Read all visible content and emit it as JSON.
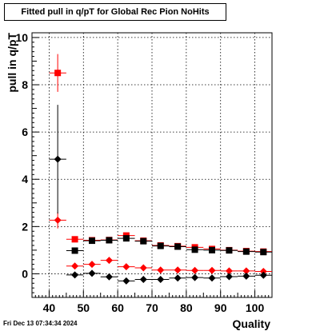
{
  "chart_data": {
    "type": "scatter",
    "title": "Fitted pull in q/pT for Global Rec Pion NoHits",
    "xlabel": "Quality",
    "ylabel": "pull in q/pT",
    "xlim": [
      35,
      105
    ],
    "ylim": [
      -1,
      10.2
    ],
    "x_ticks": [
      40,
      50,
      60,
      70,
      80,
      90,
      100
    ],
    "y_ticks": [
      0,
      2,
      4,
      6,
      8,
      10
    ],
    "grid": true,
    "x_bin_half_width": 2.5,
    "series": [
      {
        "marker": "square",
        "color": "#ff0000",
        "points": [
          {
            "x": 42.5,
            "y": 8.5,
            "err": 0.8
          },
          {
            "x": 47.5,
            "y": 1.46,
            "err": 0.05
          },
          {
            "x": 52.5,
            "y": 1.42,
            "err": 0.04
          },
          {
            "x": 57.5,
            "y": 1.43,
            "err": 0.04
          },
          {
            "x": 62.5,
            "y": 1.62,
            "err": 0.08
          },
          {
            "x": 67.5,
            "y": 1.4,
            "err": 0.03
          },
          {
            "x": 72.5,
            "y": 1.2,
            "err": 0.03
          },
          {
            "x": 77.5,
            "y": 1.17,
            "err": 0.03
          },
          {
            "x": 82.5,
            "y": 1.12,
            "err": 0.03
          },
          {
            "x": 87.5,
            "y": 1.05,
            "err": 0.03
          },
          {
            "x": 92.5,
            "y": 1.0,
            "err": 0.03
          },
          {
            "x": 97.5,
            "y": 0.96,
            "err": 0.03
          },
          {
            "x": 102.5,
            "y": 0.94,
            "err": 0.03
          }
        ]
      },
      {
        "marker": "square",
        "color": "#000000",
        "points": [
          {
            "x": 47.5,
            "y": 0.98,
            "err": 0.03
          },
          {
            "x": 52.5,
            "y": 1.4,
            "err": 0.03
          },
          {
            "x": 57.5,
            "y": 1.42,
            "err": 0.03
          },
          {
            "x": 62.5,
            "y": 1.5,
            "err": 0.04
          },
          {
            "x": 67.5,
            "y": 1.38,
            "err": 0.03
          },
          {
            "x": 72.5,
            "y": 1.18,
            "err": 0.03
          },
          {
            "x": 77.5,
            "y": 1.15,
            "err": 0.03
          },
          {
            "x": 82.5,
            "y": 1.02,
            "err": 0.03
          },
          {
            "x": 87.5,
            "y": 1.0,
            "err": 0.03
          },
          {
            "x": 92.5,
            "y": 0.99,
            "err": 0.03
          },
          {
            "x": 97.5,
            "y": 0.94,
            "err": 0.03
          },
          {
            "x": 102.5,
            "y": 0.92,
            "err": 0.03
          }
        ]
      },
      {
        "marker": "diamond",
        "color": "#ff0000",
        "points": [
          {
            "x": 42.5,
            "y": 2.27,
            "err": 0.35
          },
          {
            "x": 47.5,
            "y": 0.33,
            "err": 0.05
          },
          {
            "x": 52.5,
            "y": 0.4,
            "err": 0.04
          },
          {
            "x": 57.5,
            "y": 0.57,
            "err": 0.05
          },
          {
            "x": 62.5,
            "y": 0.3,
            "err": 0.04
          },
          {
            "x": 67.5,
            "y": 0.25,
            "err": 0.03
          },
          {
            "x": 72.5,
            "y": 0.16,
            "err": 0.03
          },
          {
            "x": 77.5,
            "y": 0.16,
            "err": 0.03
          },
          {
            "x": 82.5,
            "y": 0.14,
            "err": 0.03
          },
          {
            "x": 87.5,
            "y": 0.14,
            "err": 0.03
          },
          {
            "x": 92.5,
            "y": 0.12,
            "err": 0.03
          },
          {
            "x": 97.5,
            "y": 0.12,
            "err": 0.03
          },
          {
            "x": 102.5,
            "y": 0.1,
            "err": 0.03
          }
        ]
      },
      {
        "marker": "diamond",
        "color": "#000000",
        "points": [
          {
            "x": 42.5,
            "y": 4.85,
            "err": 2.3
          },
          {
            "x": 47.5,
            "y": -0.05,
            "err": 0.04
          },
          {
            "x": 52.5,
            "y": 0.02,
            "err": 0.04
          },
          {
            "x": 57.5,
            "y": -0.13,
            "err": 0.04
          },
          {
            "x": 62.5,
            "y": -0.3,
            "err": 0.05
          },
          {
            "x": 67.5,
            "y": -0.24,
            "err": 0.04
          },
          {
            "x": 72.5,
            "y": -0.24,
            "err": 0.04
          },
          {
            "x": 77.5,
            "y": -0.18,
            "err": 0.03
          },
          {
            "x": 82.5,
            "y": -0.16,
            "err": 0.03
          },
          {
            "x": 87.5,
            "y": -0.18,
            "err": 0.03
          },
          {
            "x": 92.5,
            "y": -0.12,
            "err": 0.03
          },
          {
            "x": 97.5,
            "y": -0.1,
            "err": 0.03
          },
          {
            "x": 102.5,
            "y": -0.06,
            "err": 0.03
          }
        ]
      }
    ]
  },
  "footer": {
    "timestamp": "Fri Dec 13 07:34:34 2024"
  }
}
